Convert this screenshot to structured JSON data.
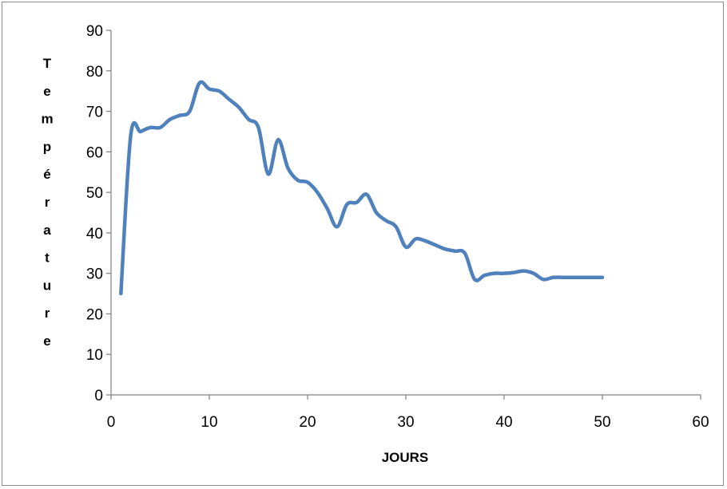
{
  "chart_data": {
    "type": "line",
    "title": "",
    "xlabel": "JOURS",
    "ylabel": "Température",
    "xlim": [
      0,
      60
    ],
    "ylim": [
      0,
      90
    ],
    "x_ticks": [
      0,
      10,
      20,
      30,
      40,
      50,
      60
    ],
    "y_ticks": [
      0,
      10,
      20,
      30,
      40,
      50,
      60,
      70,
      80,
      90
    ],
    "grid": false,
    "legend": "none",
    "line_color": "#4f81bd",
    "series": [
      {
        "x": [
          1,
          2,
          3,
          4,
          5,
          6,
          7,
          8,
          9,
          10,
          11,
          12,
          13,
          14,
          15,
          16,
          17,
          18,
          19,
          20,
          21,
          22,
          23,
          24,
          25,
          26,
          27,
          28,
          29,
          30,
          31,
          32,
          33,
          34,
          35,
          36,
          37,
          38,
          39,
          40,
          41,
          42,
          43,
          44,
          45,
          46,
          47,
          48,
          49,
          50
        ],
        "y": [
          25,
          64,
          65,
          66,
          66,
          68,
          69,
          70,
          77,
          75.5,
          75,
          73,
          71,
          68,
          66,
          54.5,
          63,
          56,
          53,
          52.5,
          50,
          46,
          41.5,
          47,
          47.5,
          49.5,
          45,
          43,
          41.5,
          36.5,
          38.5,
          38,
          37,
          36,
          35.5,
          35,
          28.5,
          29.5,
          30,
          30,
          30.2,
          30.6,
          30,
          28.5,
          29,
          29,
          29,
          29,
          29,
          29
        ]
      }
    ]
  }
}
